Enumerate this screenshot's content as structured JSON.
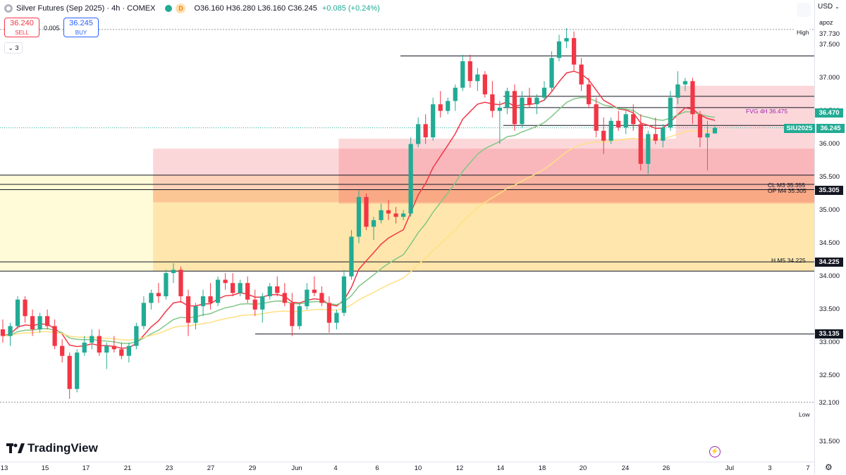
{
  "header": {
    "title": "Silver Futures (Sep 2025) · 4h · COMEX",
    "badge": "D",
    "open": "O36.160",
    "high": "H36.280",
    "low": "L36.160",
    "close": "C36.245",
    "change": "+0.085 (+0.24%)"
  },
  "trade": {
    "sell_price": "36.240",
    "sell_label": "SELL",
    "buy_price": "36.245",
    "buy_label": "BUY",
    "spread": "0.005",
    "collapse": "3"
  },
  "right_panel": {
    "currency": "USD",
    "account": "apoz",
    "gear_icon": "gear-icon"
  },
  "brand": {
    "name": "TradingView"
  },
  "colors": {
    "up": "#22ab94",
    "down": "#f23645",
    "ema_fast": "#f23645",
    "ema_mid": "#81c784",
    "ema_slow": "#ffe082",
    "zone_red": "#f2364533",
    "zone_orange": "#ff980033",
    "zone_yellow": "#ffeb3b33"
  },
  "chart_data": {
    "type": "candlestick",
    "symbol": "SIU2025",
    "ylim": [
      31.5,
      37.75
    ],
    "y_ticks": [
      "37.500",
      "37.000",
      "36.500",
      "36.000",
      "35.500",
      "35.000",
      "34.500",
      "34.000",
      "33.500",
      "33.000",
      "32.500",
      "31.500"
    ],
    "x_ticks": [
      "13",
      "15",
      "17",
      "21",
      "23",
      "27",
      "29",
      "Jun",
      "4",
      "6",
      "10",
      "12",
      "14",
      "18",
      "20",
      "24",
      "26",
      "Jul",
      "3",
      "7"
    ],
    "price_tags": [
      {
        "label": "36.470",
        "value": 36.47,
        "color": "#22ab94"
      },
      {
        "label": "36.245",
        "value": 36.245,
        "color": "#22ab94"
      },
      {
        "label": "35.305",
        "value": 35.305,
        "color": "#131722"
      },
      {
        "label": "34.225",
        "value": 34.225,
        "color": "#131722"
      },
      {
        "label": "33.135",
        "value": 33.135,
        "color": "#131722"
      },
      {
        "label": "32.100",
        "value": 32.1,
        "color": "#ffffff"
      }
    ],
    "extremes": {
      "high_label": "High",
      "high_value": "37.730",
      "low_label": "Low",
      "low_value": "32.100"
    },
    "annotations": [
      {
        "text": "FVG 4H 36.475",
        "value": 36.475
      },
      {
        "text": "CL M3 35.355",
        "value": 35.355
      },
      {
        "text": "OP M4 35.305",
        "value": 35.305
      },
      {
        "text": "H M5 34.225",
        "value": 34.225
      }
    ],
    "horizontal_levels": [
      37.33,
      36.72,
      36.55,
      36.28,
      35.53,
      35.39,
      35.31,
      34.22,
      34.08,
      33.13
    ],
    "zones": [
      {
        "from": 34.08,
        "to": 35.53,
        "color": "zone_yellow",
        "x_start": 0
      },
      {
        "from": 35.12,
        "to": 35.93,
        "color": "zone_red",
        "x_start": 0.188
      },
      {
        "from": 34.08,
        "to": 35.31,
        "color": "zone_orange",
        "x_start": 0.188
      },
      {
        "from": 35.1,
        "to": 36.08,
        "color": "zone_red",
        "x_start": 0.416
      },
      {
        "from": 36.08,
        "to": 36.88,
        "color": "zone_red",
        "x_start": 0.83
      }
    ],
    "candles": [
      [
        33.2,
        33.35,
        33.0,
        33.1
      ],
      [
        33.1,
        33.3,
        32.95,
        33.25
      ],
      [
        33.25,
        33.7,
        33.2,
        33.65
      ],
      [
        33.65,
        33.7,
        33.3,
        33.4
      ],
      [
        33.4,
        33.5,
        33.1,
        33.2
      ],
      [
        33.2,
        33.45,
        33.15,
        33.4
      ],
      [
        33.4,
        33.5,
        33.2,
        33.25
      ],
      [
        33.25,
        33.35,
        32.9,
        32.95
      ],
      [
        32.95,
        33.05,
        32.7,
        32.8
      ],
      [
        32.8,
        32.85,
        32.15,
        32.3
      ],
      [
        32.3,
        32.9,
        32.25,
        32.85
      ],
      [
        32.85,
        33.1,
        32.8,
        33.0
      ],
      [
        33.0,
        33.2,
        32.9,
        33.1
      ],
      [
        33.1,
        33.2,
        32.8,
        32.85
      ],
      [
        32.85,
        33.0,
        32.6,
        32.95
      ],
      [
        32.95,
        33.1,
        32.85,
        32.9
      ],
      [
        32.9,
        33.0,
        32.75,
        32.8
      ],
      [
        32.8,
        33.0,
        32.7,
        32.95
      ],
      [
        32.95,
        33.3,
        32.9,
        33.25
      ],
      [
        33.25,
        33.7,
        33.2,
        33.6
      ],
      [
        33.6,
        33.8,
        33.5,
        33.75
      ],
      [
        33.75,
        33.9,
        33.6,
        33.7
      ],
      [
        33.7,
        34.1,
        33.65,
        34.05
      ],
      [
        34.05,
        34.2,
        33.9,
        34.1
      ],
      [
        34.1,
        34.15,
        33.6,
        33.7
      ],
      [
        33.7,
        33.8,
        33.1,
        33.3
      ],
      [
        33.3,
        33.6,
        33.2,
        33.55
      ],
      [
        33.55,
        33.8,
        33.4,
        33.7
      ],
      [
        33.7,
        33.9,
        33.5,
        33.6
      ],
      [
        33.6,
        34.0,
        33.55,
        33.95
      ],
      [
        33.95,
        34.05,
        33.8,
        33.9
      ],
      [
        33.9,
        34.05,
        33.7,
        33.75
      ],
      [
        33.75,
        33.95,
        33.7,
        33.9
      ],
      [
        33.9,
        34.0,
        33.6,
        33.65
      ],
      [
        33.65,
        33.8,
        33.4,
        33.5
      ],
      [
        33.5,
        33.75,
        33.3,
        33.7
      ],
      [
        33.7,
        33.9,
        33.65,
        33.85
      ],
      [
        33.85,
        34.0,
        33.7,
        33.75
      ],
      [
        33.75,
        33.9,
        33.55,
        33.6
      ],
      [
        33.6,
        33.75,
        33.1,
        33.25
      ],
      [
        33.25,
        33.6,
        33.2,
        33.55
      ],
      [
        33.55,
        33.9,
        33.5,
        33.8
      ],
      [
        33.8,
        34.0,
        33.7,
        33.75
      ],
      [
        33.75,
        33.85,
        33.55,
        33.6
      ],
      [
        33.6,
        33.7,
        33.15,
        33.3
      ],
      [
        33.3,
        33.5,
        33.2,
        33.45
      ],
      [
        33.45,
        34.1,
        33.4,
        34.0
      ],
      [
        34.0,
        34.7,
        33.95,
        34.6
      ],
      [
        34.6,
        35.3,
        34.5,
        35.2
      ],
      [
        35.2,
        35.25,
        34.7,
        34.75
      ],
      [
        34.75,
        34.9,
        34.55,
        34.85
      ],
      [
        34.85,
        35.1,
        34.8,
        35.0
      ],
      [
        35.0,
        35.15,
        34.85,
        34.95
      ],
      [
        34.95,
        35.05,
        34.8,
        34.9
      ],
      [
        34.9,
        35.0,
        34.85,
        34.95
      ],
      [
        34.95,
        36.1,
        34.9,
        36.0
      ],
      [
        36.0,
        36.4,
        35.95,
        36.3
      ],
      [
        36.3,
        36.45,
        36.0,
        36.1
      ],
      [
        36.1,
        36.7,
        36.05,
        36.6
      ],
      [
        36.6,
        36.8,
        36.4,
        36.5
      ],
      [
        36.5,
        36.7,
        36.45,
        36.65
      ],
      [
        36.65,
        36.9,
        36.5,
        36.85
      ],
      [
        36.85,
        37.35,
        36.8,
        37.25
      ],
      [
        37.25,
        37.35,
        36.85,
        36.95
      ],
      [
        36.95,
        37.15,
        36.8,
        37.05
      ],
      [
        37.05,
        37.1,
        36.7,
        36.75
      ],
      [
        36.75,
        36.95,
        36.4,
        36.5
      ],
      [
        36.5,
        36.65,
        36.0,
        36.55
      ],
      [
        36.55,
        36.85,
        36.45,
        36.8
      ],
      [
        36.8,
        36.9,
        36.2,
        36.3
      ],
      [
        36.3,
        36.8,
        36.25,
        36.7
      ],
      [
        36.7,
        36.85,
        36.55,
        36.6
      ],
      [
        36.6,
        36.75,
        36.45,
        36.7
      ],
      [
        36.7,
        36.95,
        36.65,
        36.85
      ],
      [
        36.85,
        37.4,
        36.8,
        37.3
      ],
      [
        37.3,
        37.65,
        37.25,
        37.55
      ],
      [
        37.55,
        37.75,
        37.45,
        37.6
      ],
      [
        37.6,
        37.7,
        37.1,
        37.2
      ],
      [
        37.2,
        37.3,
        36.8,
        36.9
      ],
      [
        36.9,
        37.0,
        36.55,
        36.6
      ],
      [
        36.6,
        36.7,
        36.1,
        36.2
      ],
      [
        36.2,
        36.4,
        35.85,
        36.05
      ],
      [
        36.05,
        36.4,
        36.0,
        36.35
      ],
      [
        36.35,
        36.5,
        36.2,
        36.25
      ],
      [
        36.25,
        36.5,
        36.15,
        36.45
      ],
      [
        36.45,
        36.6,
        36.2,
        36.3
      ],
      [
        36.3,
        36.45,
        35.6,
        35.7
      ],
      [
        35.7,
        36.2,
        35.55,
        36.15
      ],
      [
        36.15,
        36.4,
        36.0,
        36.05
      ],
      [
        36.05,
        36.3,
        35.95,
        36.25
      ],
      [
        36.25,
        36.8,
        36.2,
        36.7
      ],
      [
        36.7,
        37.1,
        36.6,
        36.9
      ],
      [
        36.9,
        37.0,
        36.8,
        36.95
      ],
      [
        36.95,
        37.0,
        36.3,
        36.45
      ],
      [
        36.45,
        36.5,
        35.95,
        36.1
      ],
      [
        36.1,
        36.35,
        35.6,
        36.16
      ],
      [
        36.16,
        36.28,
        36.16,
        36.245
      ]
    ]
  }
}
